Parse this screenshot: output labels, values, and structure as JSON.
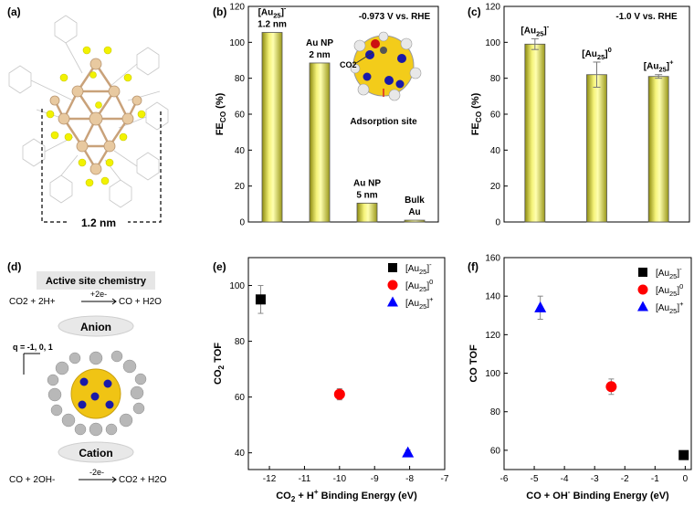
{
  "panels": {
    "a": {
      "label": "(a)",
      "scale_text": "1.2 nm"
    },
    "b": {
      "label": "(b)",
      "chart_data": {
        "type": "bar",
        "title": "",
        "annotation": "-0.973 V vs. RHE",
        "xlabel": "",
        "ylabel": "FE_CO (%)",
        "ylim": [
          0,
          120
        ],
        "yticks": [
          0,
          20,
          40,
          60,
          80,
          100,
          120
        ],
        "categories": [
          "[Au25]- 1.2 nm",
          "Au NP 2 nm",
          "Au NP 5 nm",
          "Bulk Au"
        ],
        "bar_labels": [
          [
            "[Au25]-",
            "1.2 nm"
          ],
          [
            "Au NP",
            "2 nm"
          ],
          [
            "Au NP",
            "5 nm"
          ],
          [
            "Bulk",
            "Au"
          ]
        ],
        "values": [
          105.5,
          88.5,
          10.5,
          1
        ]
      },
      "inset": {
        "molecule_label": "CO2",
        "caption": "Adsorption site"
      }
    },
    "c": {
      "label": "(c)",
      "chart_data": {
        "type": "bar",
        "title": "",
        "annotation": "-1.0 V vs. RHE",
        "xlabel": "",
        "ylabel": "FE_CO (%)",
        "ylim": [
          0,
          120
        ],
        "yticks": [
          0,
          20,
          40,
          60,
          80,
          100,
          120
        ],
        "categories": [
          "[Au25]-",
          "[Au25]0",
          "[Au25]+"
        ],
        "values": [
          99,
          82,
          81
        ],
        "errors": [
          3,
          7,
          1
        ]
      }
    },
    "d": {
      "label": "(d)",
      "title": "Active site chemistry",
      "eq1_left": "CO2 + 2H+",
      "eq1_arrow": "+2e-",
      "eq1_right": "CO + H2O",
      "anion_label": "Anion",
      "charge_label": "q = -1, 0, 1",
      "cation_label": "Cation",
      "eq2_left": "CO + 2OH-",
      "eq2_arrow": "-2e-",
      "eq2_right": "CO2 + H2O"
    },
    "e": {
      "label": "(e)",
      "chart_data": {
        "type": "scatter",
        "xlabel": "CO2 + H+ Binding Energy (eV)",
        "ylabel": "CO2 TOF",
        "xlim": [
          -12.6,
          -7
        ],
        "ylim": [
          34,
          110
        ],
        "xticks": [
          -12,
          -11,
          -10,
          -9,
          -8,
          -7
        ],
        "yticks": [
          40,
          60,
          80,
          100
        ],
        "series": [
          {
            "name": "[Au25]-",
            "color": "#000000",
            "marker": "square",
            "x": -12.25,
            "y": 95,
            "err": 5
          },
          {
            "name": "[Au25]0",
            "color": "#ff0000",
            "marker": "circle",
            "x": -10.0,
            "y": 61,
            "err": 2
          },
          {
            "name": "[Au25]+",
            "color": "#0000ff",
            "marker": "triangle",
            "x": -8.05,
            "y": 40,
            "err": 1
          }
        ]
      }
    },
    "f": {
      "label": "(f)",
      "chart_data": {
        "type": "scatter",
        "xlabel": "CO + OH- Binding Energy (eV)",
        "ylabel": "CO TOF",
        "xlim": [
          -6,
          0.2
        ],
        "ylim": [
          50,
          160
        ],
        "xticks": [
          -6,
          -5,
          -4,
          -3,
          -2,
          -1,
          0
        ],
        "yticks": [
          60,
          80,
          100,
          120,
          140,
          160
        ],
        "series": [
          {
            "name": "[Au25]-",
            "color": "#000000",
            "marker": "square",
            "x": -0.05,
            "y": 57.5,
            "err": 2
          },
          {
            "name": "[Au25]0",
            "color": "#ff0000",
            "marker": "circle",
            "x": -2.45,
            "y": 93,
            "err": 4
          },
          {
            "name": "[Au25]+",
            "color": "#0000ff",
            "marker": "triangle",
            "x": -4.8,
            "y": 134,
            "err": 6
          }
        ]
      }
    }
  }
}
